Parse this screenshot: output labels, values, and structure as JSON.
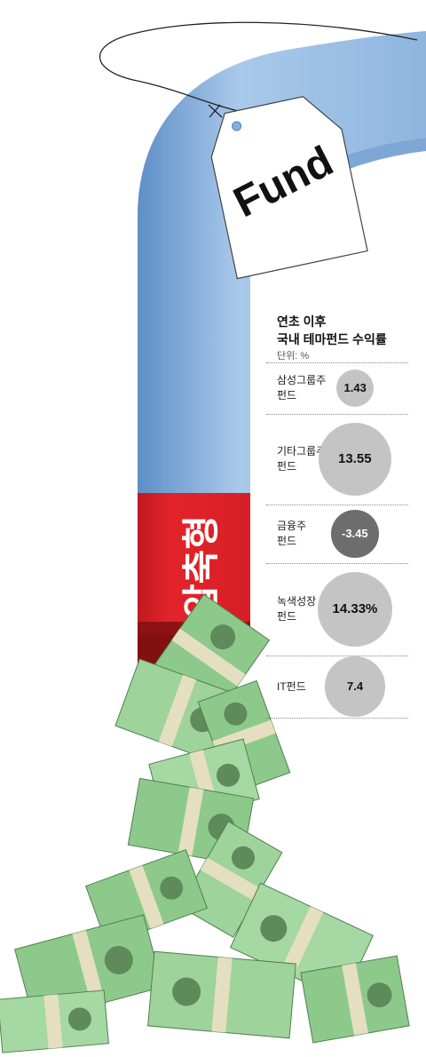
{
  "tag_text": "Fund",
  "banner_text": "압축형",
  "chart_data": {
    "type": "bubble",
    "title_lines": [
      "연초 이후",
      "국내 테마펀드 수익률"
    ],
    "unit": "단위: %",
    "categories": [
      {
        "lines": [
          "삼성그룹주",
          "펀드"
        ]
      },
      {
        "lines": [
          "기타그룹주",
          "펀드"
        ]
      },
      {
        "lines": [
          "금융주",
          "펀드"
        ]
      },
      {
        "lines": [
          "녹색성장",
          "펀드"
        ]
      },
      {
        "lines": [
          "IT펀드"
        ]
      }
    ],
    "values": [
      1.43,
      13.55,
      -3.45,
      14.33,
      7.4
    ],
    "value_labels": [
      "1.43",
      "13.55",
      "-3.45",
      "14.33%",
      "7.4"
    ],
    "colors": {
      "positive": "#c4c4c4",
      "negative": "#6d6d6d"
    }
  },
  "colors": {
    "tube": "#a9c9ea",
    "banner": "#e2242b",
    "money": "#8ec98c"
  }
}
